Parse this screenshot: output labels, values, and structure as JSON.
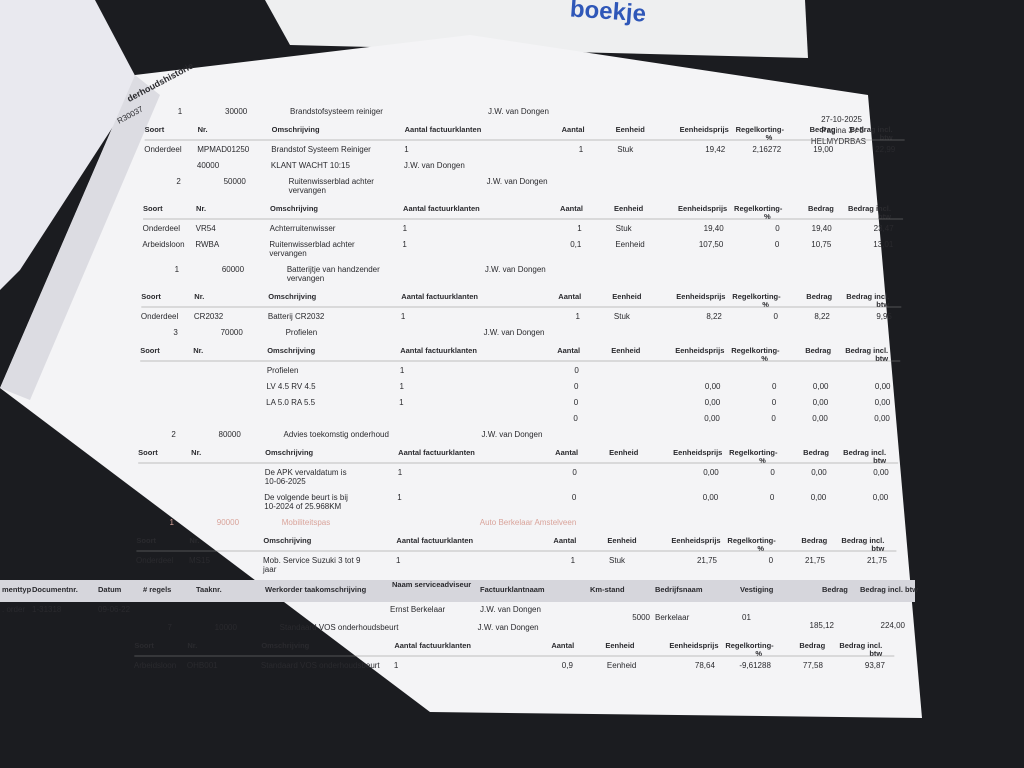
{
  "cover_text": "boekje",
  "header": {
    "title": "derhoudshistorie",
    "reference": "R30037",
    "date": "27-10-2025",
    "page": "Pagina 3 / 5",
    "user": "HELMYDRBAS"
  },
  "columns": {
    "soort": "Soort",
    "nr": "Nr.",
    "omschrijving": "Omschrijving",
    "aantal_factuurklanten": "Aantal factuurklanten",
    "aantal": "Aantal",
    "eenheid": "Eenheid",
    "eenheidsprijs": "Eenheidsprijs",
    "regelkorting": "Regelkorting-%",
    "bedrag": "Bedrag",
    "bedrag_incl": "Bedrag incl. btw"
  },
  "sections": [
    {
      "job": {
        "regel": "1",
        "taak": "30000",
        "omschrijving": "Brandstofsysteem reiniger",
        "klant": "J.W. van Dongen"
      },
      "items": [
        {
          "soort": "Onderdeel",
          "nr": "MPMAD01250",
          "omschrijving": "Brandstof Systeem Reiniger",
          "aantal_factuurklanten": "1",
          "aantal": "1",
          "eenheid": "Stuk",
          "eenheidsprijs": "19,42",
          "regelkorting": "2,16272",
          "bedrag": "19,00",
          "bedrag_incl": "22,99"
        },
        {
          "nr": "40000",
          "omschrijving": "KLANT WACHT 10:15",
          "aantal_factuurklanten": "J.W. van Dongen"
        }
      ]
    },
    {
      "job": {
        "regel": "2",
        "taak": "50000",
        "omschrijving": "Ruitenwisserblad achter vervangen",
        "klant": "J.W. van Dongen"
      },
      "items": [
        {
          "soort": "Onderdeel",
          "nr": "VR54",
          "omschrijving": "Achterruitenwisser",
          "aantal_factuurklanten": "1",
          "aantal": "1",
          "eenheid": "Stuk",
          "eenheidsprijs": "19,40",
          "regelkorting": "0",
          "bedrag": "19,40",
          "bedrag_incl": "23,47"
        },
        {
          "soort": "Arbeidsloon",
          "nr": "RWBA",
          "omschrijving": "Ruitenwisserblad achter vervangen",
          "aantal_factuurklanten": "1",
          "aantal": "0,1",
          "eenheid": "Eenheid",
          "eenheidsprijs": "107,50",
          "regelkorting": "0",
          "bedrag": "10,75",
          "bedrag_incl": "13,01"
        }
      ]
    },
    {
      "job": {
        "regel": "1",
        "taak": "60000",
        "omschrijving": "Batterijtje van handzender vervangen",
        "klant": "J.W. van Dongen"
      },
      "items": [
        {
          "soort": "Onderdeel",
          "nr": "CR2032",
          "omschrijving": "Batterij CR2032",
          "aantal_factuurklanten": "1",
          "aantal": "1",
          "eenheid": "Stuk",
          "eenheidsprijs": "8,22",
          "regelkorting": "0",
          "bedrag": "8,22",
          "bedrag_incl": "9,95"
        }
      ]
    },
    {
      "job": {
        "regel": "3",
        "taak": "70000",
        "omschrijving": "Profielen",
        "klant": "J.W. van Dongen"
      },
      "items": [
        {
          "omschrijving": "Profielen",
          "aantal_factuurklanten": "1",
          "aantal": "0"
        },
        {
          "omschrijving": "LV 4.5     RV 4.5",
          "aantal_factuurklanten": "1",
          "aantal": "0",
          "eenheidsprijs": "0,00",
          "regelkorting": "0",
          "bedrag": "0,00",
          "bedrag_incl": "0,00"
        },
        {
          "omschrijving": "LA 5.0     RA 5.5",
          "aantal_factuurklanten": "1",
          "aantal": "0",
          "eenheidsprijs": "0,00",
          "regelkorting": "0",
          "bedrag": "0,00",
          "bedrag_incl": "0,00"
        },
        {
          "aantal": "0",
          "eenheidsprijs": "0,00",
          "regelkorting": "0",
          "bedrag": "0,00",
          "bedrag_incl": "0,00"
        }
      ]
    },
    {
      "job": {
        "regel": "2",
        "taak": "80000",
        "omschrijving": "Advies toekomstig onderhoud",
        "klant": "J.W. van Dongen"
      },
      "items": [
        {
          "omschrijving": "De APK vervaldatum is 10-06-2025",
          "aantal_factuurklanten": "1",
          "aantal": "0",
          "eenheidsprijs": "0,00",
          "regelkorting": "0",
          "bedrag": "0,00",
          "bedrag_incl": "0,00"
        },
        {
          "omschrijving": "De volgende beurt is bij 10-2024 of 25.968KM",
          "aantal_factuurklanten": "1",
          "aantal": "0",
          "eenheidsprijs": "0,00",
          "regelkorting": "0",
          "bedrag": "0,00",
          "bedrag_incl": "0,00"
        }
      ]
    },
    {
      "job": {
        "regel": "1",
        "taak": "90000",
        "omschrijving": "Mobiliteitspas",
        "klant": "Auto Berkelaar Amstelveen"
      },
      "items": [
        {
          "soort": "Onderdeel",
          "nr": "MS15",
          "omschrijving": "Mob. Service Suzuki 3 tot 9 jaar",
          "aantal_factuurklanten": "1",
          "aantal": "1",
          "eenheid": "Stuk",
          "eenheidsprijs": "21,75",
          "regelkorting": "0",
          "bedrag": "21,75",
          "bedrag_incl": "21,75"
        }
      ]
    }
  ],
  "order": {
    "columns": {
      "documenttype": "menttyp",
      "documentnr": "Documentnr.",
      "datum": "Datum",
      "regels": "# regels",
      "taaknr": "Taaknr.",
      "taak": "Werkorder taakomschrijving",
      "adviseur": "Naam serviceadviseur",
      "klant": "Factuurklantnaam",
      "km": "Km-stand",
      "bedrijf": "Bedrijfsnaam",
      "vestiging": "Vestiging",
      "bedrag": "Bedrag",
      "bedrag_incl": "Bedrag incl. btw"
    },
    "row": {
      "documenttype": ". order",
      "documentnr": "1-31318",
      "datum": "09-06-22",
      "adviseur": "Ernst Berkelaar",
      "klant": "J.W. van Dongen",
      "km": "5000",
      "bedrijf": "Berkelaar",
      "vestiging": "01",
      "bedrag": "185,12",
      "bedrag_incl": "224,00"
    }
  },
  "last_section": {
    "job": {
      "regel": "7",
      "taak": "10000",
      "omschrijving": "Standaard VOS onderhoudsbeurt",
      "klant": "J.W. van Dongen"
    },
    "items": [
      {
        "soort": "Arbeidsloon",
        "nr": "OHB001",
        "omschrijving": "Standaard VOS onderhoudsbeurt",
        "aantal_factuurklanten": "1",
        "aantal": "0,9",
        "eenheid": "Eenheid",
        "eenheidsprijs": "78,64",
        "regelkorting": "-9,61288",
        "bedrag": "77,58",
        "bedrag_incl": "93,87"
      }
    ]
  }
}
